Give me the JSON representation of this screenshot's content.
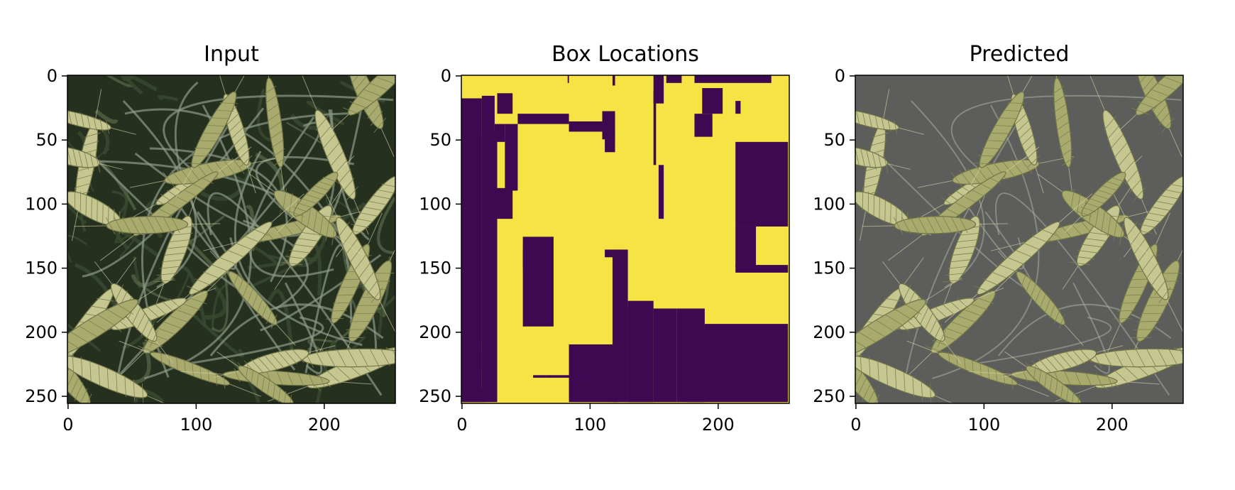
{
  "colors": {
    "mask_on": "#f6e444",
    "mask_off": "#3d0a52",
    "pred_bg": "#5d5d5b",
    "wheat_light": "#c6c690",
    "wheat_dark": "#26301f"
  },
  "chart_data": [
    {
      "type": "image",
      "title": "Input",
      "content": "wheat-ear-photo",
      "xlim": [
        0,
        255
      ],
      "ylim": [
        255,
        0
      ],
      "xticks": [
        0,
        100,
        200
      ],
      "yticks": [
        0,
        50,
        100,
        150,
        200,
        250
      ],
      "xtick_labels": [
        "0",
        "100",
        "200"
      ],
      "ytick_labels": [
        "0",
        "50",
        "100",
        "150",
        "200",
        "250"
      ]
    },
    {
      "type": "heatmap",
      "title": "Box Locations",
      "colormap": "viridis",
      "values": [
        0,
        1
      ],
      "xlim": [
        0,
        255
      ],
      "ylim": [
        255,
        0
      ],
      "xticks": [
        0,
        100,
        200
      ],
      "yticks": [
        0,
        50,
        100,
        150,
        200,
        250
      ],
      "xtick_labels": [
        "0",
        "100",
        "200"
      ],
      "ytick_labels": [
        "0",
        "50",
        "100",
        "150",
        "200",
        "250"
      ],
      "background_regions": [
        [
          0,
          16,
          18,
          255
        ],
        [
          16,
          28,
          44,
          255
        ],
        [
          16,
          26,
          16,
          210
        ],
        [
          26,
          34,
          38,
          52
        ],
        [
          34,
          44,
          38,
          90
        ],
        [
          44,
          84,
          30,
          38
        ],
        [
          84,
          110,
          36,
          44
        ],
        [
          28,
          40,
          14,
          30
        ],
        [
          83,
          84,
          0,
          6
        ],
        [
          118,
          120,
          0,
          8
        ],
        [
          110,
          120,
          28,
          50
        ],
        [
          112,
          120,
          44,
          60
        ],
        [
          150,
          152,
          12,
          70
        ],
        [
          154,
          158,
          70,
          112
        ],
        [
          150,
          158,
          0,
          22
        ],
        [
          160,
          172,
          0,
          6
        ],
        [
          182,
          242,
          0,
          6
        ],
        [
          188,
          204,
          10,
          30
        ],
        [
          182,
          196,
          30,
          48
        ],
        [
          214,
          218,
          20,
          30
        ],
        [
          214,
          255,
          52,
          118
        ],
        [
          214,
          230,
          118,
          150
        ],
        [
          214,
          255,
          148,
          154
        ],
        [
          26,
          40,
          88,
          112
        ],
        [
          48,
          72,
          126,
          196
        ],
        [
          48,
          58,
          136,
          150
        ],
        [
          112,
          118,
          136,
          142
        ],
        [
          118,
          130,
          136,
          255
        ],
        [
          130,
          150,
          182,
          255
        ],
        [
          150,
          168,
          182,
          255
        ],
        [
          168,
          190,
          182,
          255
        ],
        [
          176,
          190,
          196,
          255
        ],
        [
          190,
          255,
          194,
          255
        ],
        [
          84,
          122,
          210,
          255
        ],
        [
          130,
          150,
          176,
          255
        ],
        [
          0,
          10,
          196,
          212
        ],
        [
          16,
          26,
          212,
          230
        ],
        [
          0,
          18,
          244,
          255
        ],
        [
          56,
          66,
          234,
          236
        ],
        [
          66,
          96,
          234,
          236
        ],
        [
          96,
          122,
          234,
          236
        ],
        [
          96,
          104,
          228,
          234
        ]
      ]
    },
    {
      "type": "image",
      "title": "Predicted",
      "content": "masked-wheat-photo",
      "xlim": [
        0,
        255
      ],
      "ylim": [
        255,
        0
      ],
      "xticks": [
        0,
        100,
        200
      ],
      "yticks": [
        0,
        50,
        100,
        150,
        200,
        250
      ],
      "xtick_labels": [
        "0",
        "100",
        "200"
      ],
      "ytick_labels": [
        "0",
        "50",
        "100",
        "150",
        "200",
        "250"
      ]
    }
  ]
}
